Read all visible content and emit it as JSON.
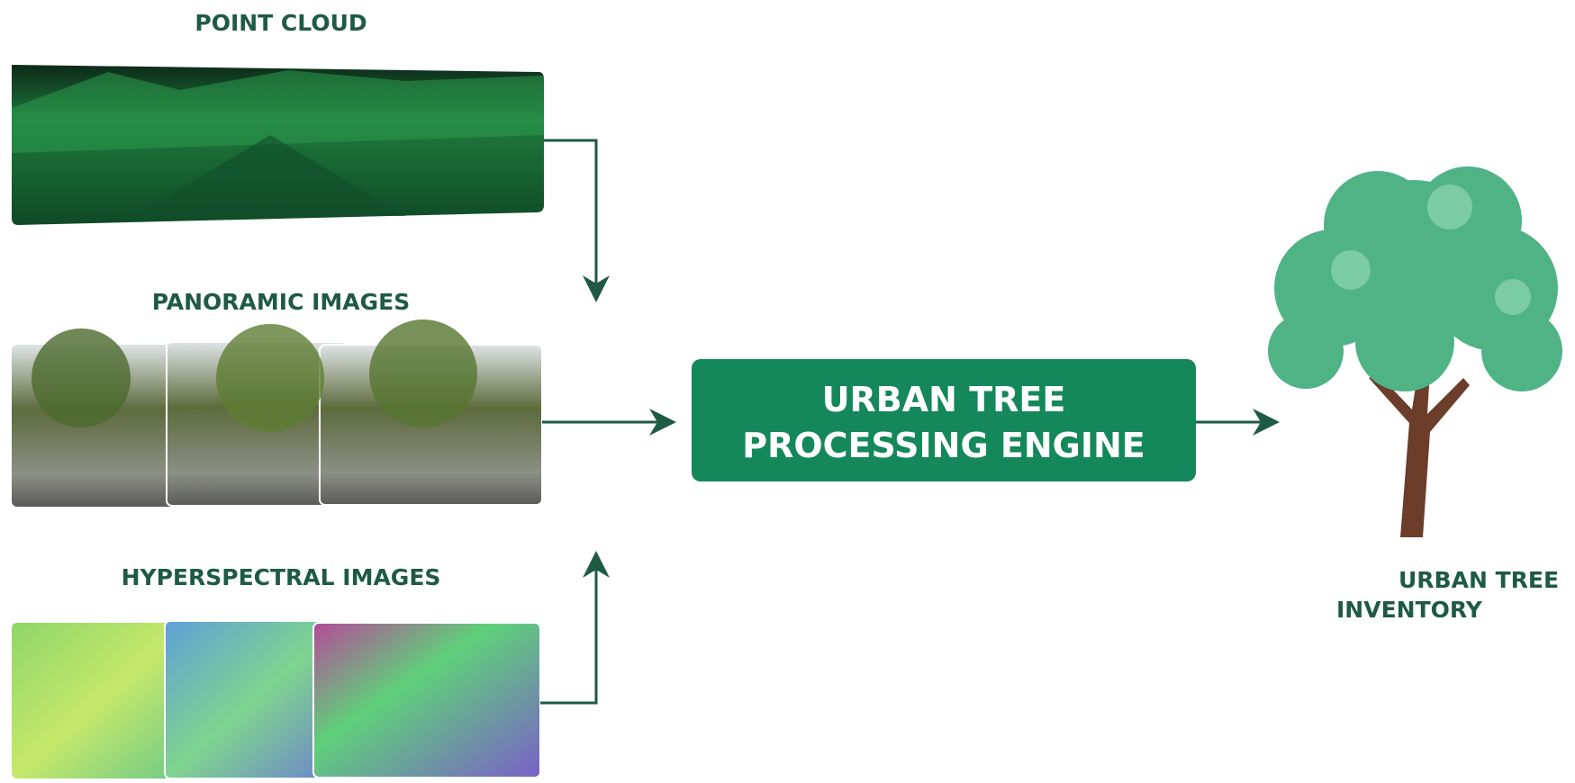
{
  "inputs": [
    {
      "label": "POINT CLOUD"
    },
    {
      "label": "PANORAMIC IMAGES"
    },
    {
      "label": "HYPERSPECTRAL IMAGES"
    }
  ],
  "engine": {
    "lines": [
      "URBAN TREE",
      "PROCESSING ENGINE"
    ]
  },
  "output": {
    "lines": [
      "URBAN TREE",
      "INVENTORY"
    ]
  }
}
